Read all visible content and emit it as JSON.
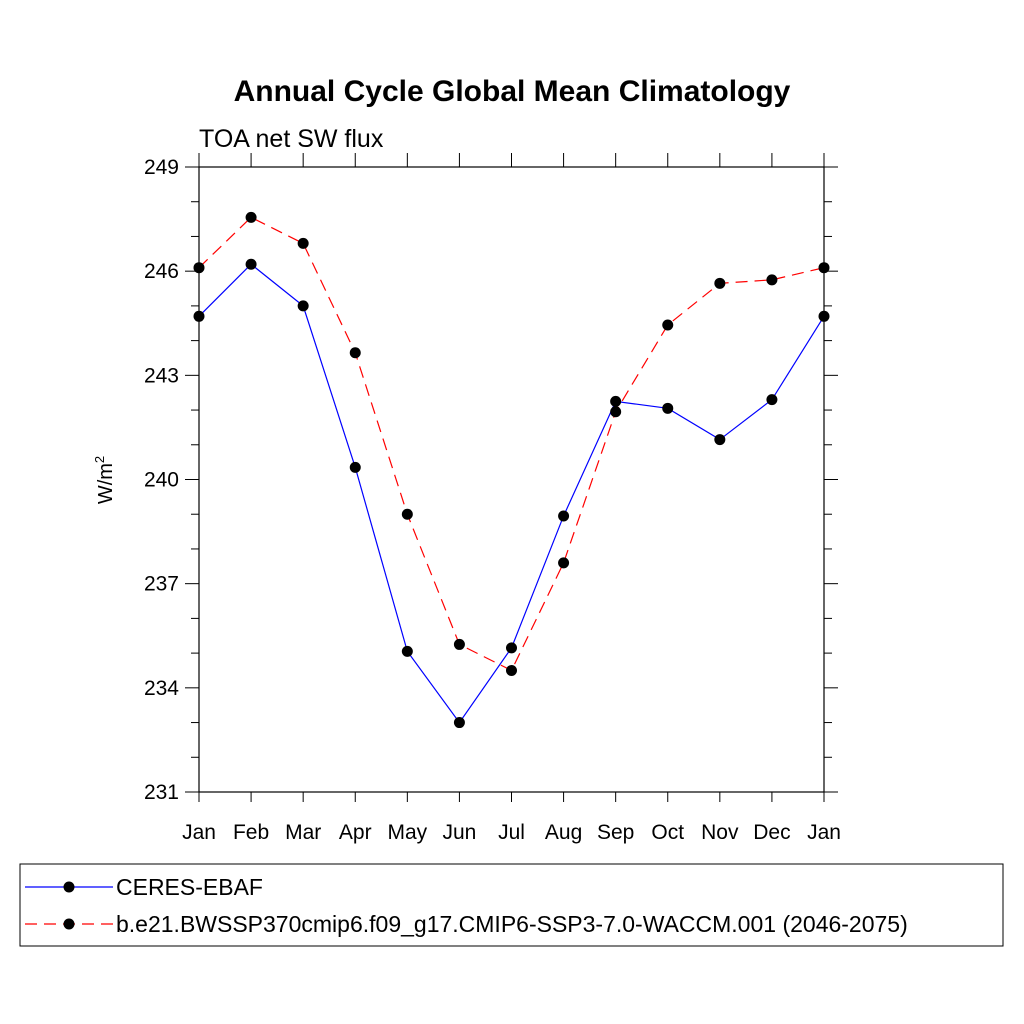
{
  "chart_data": {
    "type": "line",
    "title": "Annual Cycle Global Mean Climatology",
    "subtitle": "TOA net SW flux",
    "ylabel_base": "W/m",
    "ylabel_sup": "2",
    "categories": [
      "Jan",
      "Feb",
      "Mar",
      "Apr",
      "May",
      "Jun",
      "Jul",
      "Aug",
      "Sep",
      "Oct",
      "Nov",
      "Dec",
      "Jan"
    ],
    "ylim": [
      231,
      249
    ],
    "yticks": [
      "231",
      "234",
      "237",
      "240",
      "243",
      "246",
      "249"
    ],
    "series": [
      {
        "name": "CERES-EBAF",
        "color": "#0000ff",
        "dash": "solid",
        "values": [
          244.7,
          246.2,
          245.0,
          240.35,
          235.05,
          233.0,
          235.15,
          238.95,
          242.25,
          242.05,
          241.15,
          242.3,
          244.7
        ]
      },
      {
        "name": "b.e21.BWSSP370cmip6.f09_g17.CMIP6-SSP3-7.0-WACCM.001 (2046-2075)",
        "color": "#ff0000",
        "dash": "dashed",
        "values": [
          246.1,
          247.55,
          246.8,
          243.65,
          239.0,
          235.25,
          234.5,
          237.6,
          241.95,
          244.45,
          245.65,
          245.75,
          246.1
        ]
      }
    ]
  }
}
